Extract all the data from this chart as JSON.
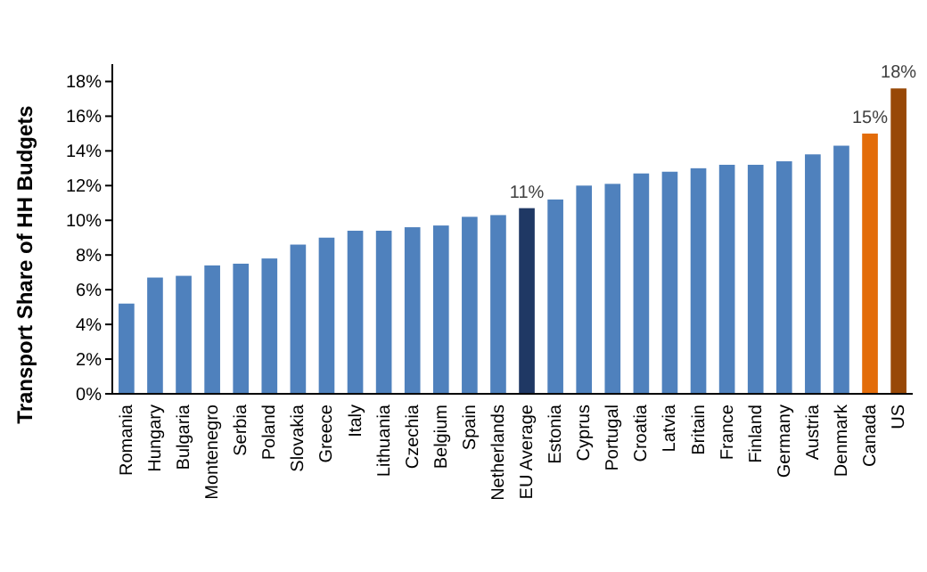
{
  "chart_data": {
    "type": "bar",
    "ylabel": "Transport Share of HH Budgets",
    "categories": [
      "Romania",
      "Hungary",
      "Bulgaria",
      "Montenegro",
      "Serbia",
      "Poland",
      "Slovakia",
      "Greece",
      "Italy",
      "Lithuania",
      "Czechia",
      "Belgium",
      "Spain",
      "Netherlands",
      "EU Average",
      "Estonia",
      "Cyprus",
      "Portugal",
      "Croatia",
      "Latvia",
      "Britain",
      "France",
      "Finland",
      "Germany",
      "Austria",
      "Denmark",
      "Canada",
      "US"
    ],
    "values": [
      5.2,
      6.7,
      6.8,
      7.4,
      7.5,
      7.8,
      8.6,
      9.0,
      9.4,
      9.4,
      9.6,
      9.7,
      10.2,
      10.3,
      10.7,
      11.2,
      12.0,
      12.1,
      12.7,
      12.8,
      13.0,
      13.2,
      13.2,
      13.4,
      13.8,
      14.3,
      15.0,
      17.6
    ],
    "colors": [
      "#4f81bd",
      "#4f81bd",
      "#4f81bd",
      "#4f81bd",
      "#4f81bd",
      "#4f81bd",
      "#4f81bd",
      "#4f81bd",
      "#4f81bd",
      "#4f81bd",
      "#4f81bd",
      "#4f81bd",
      "#4f81bd",
      "#4f81bd",
      "#1f3864",
      "#4f81bd",
      "#4f81bd",
      "#4f81bd",
      "#4f81bd",
      "#4f81bd",
      "#4f81bd",
      "#4f81bd",
      "#4f81bd",
      "#4f81bd",
      "#4f81bd",
      "#4f81bd",
      "#e36c09",
      "#984807"
    ],
    "value_labels": [
      null,
      null,
      null,
      null,
      null,
      null,
      null,
      null,
      null,
      null,
      null,
      null,
      null,
      null,
      "11%",
      null,
      null,
      null,
      null,
      null,
      null,
      null,
      null,
      null,
      null,
      null,
      "15%",
      "18%"
    ],
    "ylim": [
      0,
      19
    ],
    "yticks": [
      {
        "value": 0,
        "label": "0%"
      },
      {
        "value": 2,
        "label": "2%"
      },
      {
        "value": 4,
        "label": "4%"
      },
      {
        "value": 6,
        "label": "6%"
      },
      {
        "value": 8,
        "label": "8%"
      },
      {
        "value": 10,
        "label": "10%"
      },
      {
        "value": 12,
        "label": "12%"
      },
      {
        "value": 14,
        "label": "14%"
      },
      {
        "value": 16,
        "label": "16%"
      },
      {
        "value": 18,
        "label": "18%"
      }
    ],
    "grid": false
  }
}
